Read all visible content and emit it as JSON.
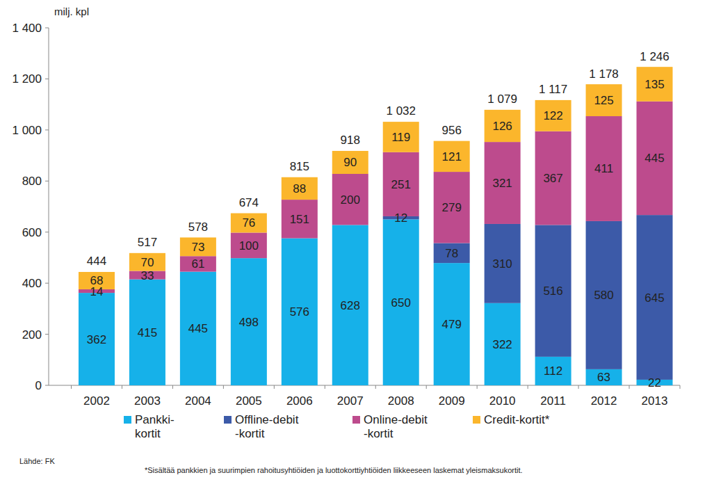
{
  "chart_data": {
    "type": "bar",
    "stacked": true,
    "data_labels": true,
    "grid": false,
    "legend": "bottom",
    "ylabel": "milj. kpl",
    "source": "Lähde: FK",
    "note": "*Sisältää pankkien ja suurimpien rahoitusyhtiöiden ja luottokorttiyhtiöiden liikkeeseen laskemat yleismaksukortit.",
    "categories": [
      "2002",
      "2003",
      "2004",
      "2005",
      "2006",
      "2007",
      "2008",
      "2009",
      "2010",
      "2011",
      "2012",
      "2013"
    ],
    "series": [
      {
        "name": "Pankki-\nkortit",
        "color": "#16b1e9",
        "values": [
          362,
          415,
          445,
          498,
          576,
          628,
          650,
          479,
          322,
          112,
          63,
          22
        ]
      },
      {
        "name": "Offline-debit\n-kortit",
        "color": "#3c5aa8",
        "values": [
          null,
          null,
          null,
          null,
          null,
          null,
          12,
          78,
          310,
          516,
          580,
          645
        ]
      },
      {
        "name": "Online-debit\n-kortit",
        "color": "#bd4b8d",
        "values": [
          14,
          33,
          61,
          100,
          151,
          200,
          251,
          279,
          321,
          367,
          411,
          445
        ]
      },
      {
        "name": "Credit-kortit*",
        "color": "#fbb62c",
        "values": [
          68,
          70,
          73,
          76,
          88,
          90,
          119,
          121,
          126,
          122,
          125,
          135
        ]
      }
    ],
    "totals": [
      444,
      517,
      578,
      674,
      815,
      918,
      1032,
      956,
      1079,
      1117,
      1178,
      1246
    ],
    "total_labels": [
      "444",
      "517",
      "578",
      "674",
      "815",
      "918",
      "1 032",
      "956",
      "1 079",
      "1 117",
      "1 178",
      "1 246"
    ],
    "ylim": [
      0,
      1400
    ],
    "yticks": [
      0,
      200,
      400,
      600,
      800,
      {
        "value": 1000,
        "label": "1 000"
      },
      {
        "value": 1200,
        "label": "1 200"
      },
      {
        "value": 1400,
        "label": "1 400"
      }
    ]
  }
}
